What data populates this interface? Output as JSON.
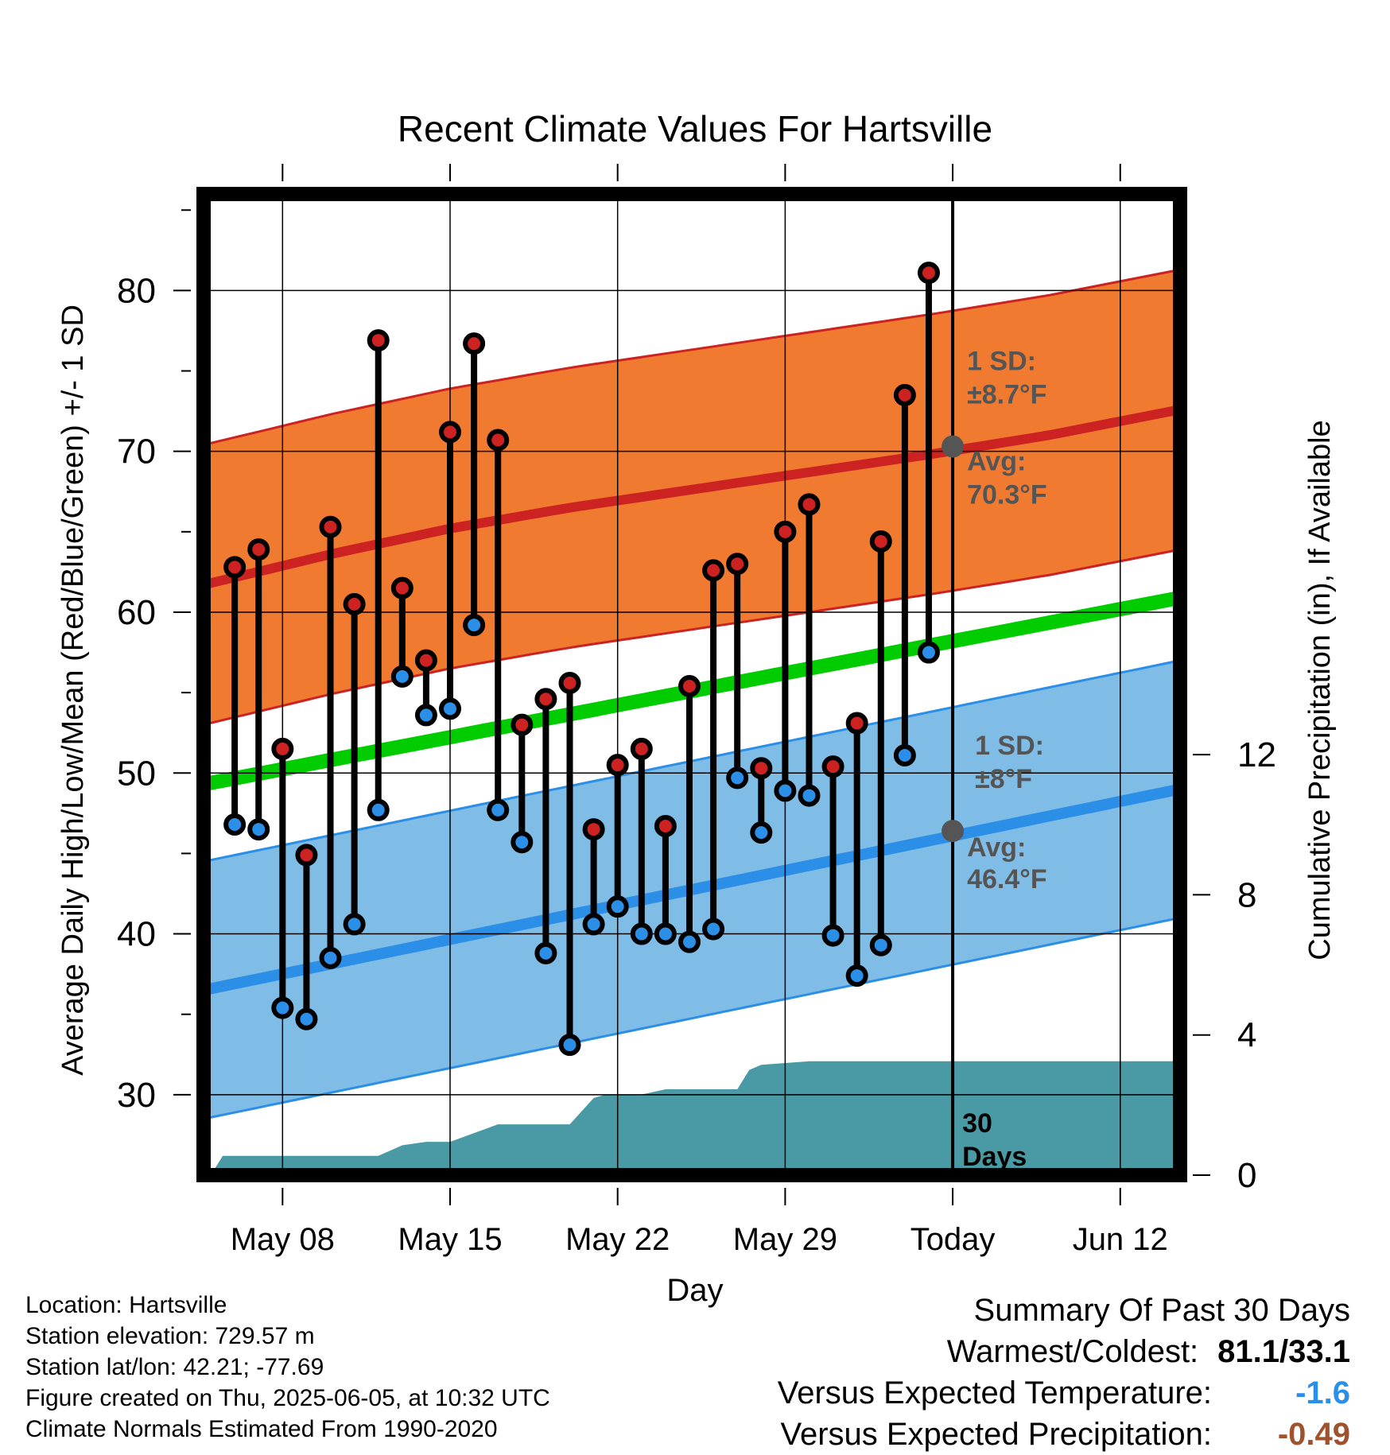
{
  "colors": {
    "high_dot": "#cc2222",
    "low_dot": "#2b8fe8",
    "high_band": "#f07a30",
    "high_line": "#cc2222",
    "low_band": "#80bde6",
    "low_line": "#2b8fe8",
    "mean_line": "#00cc00",
    "precip": "#4a9aa5",
    "avg_marker": "#555555",
    "annotation_text": "#555555",
    "temp_anomaly": "#2b8fe8",
    "precip_anomaly": "#a0522d"
  },
  "chart_data": {
    "type": "line",
    "title": "Recent Climate Values For Hartsville",
    "xlabel": "Day",
    "ylabel": "Average Daily High/Low/Mean (Red/Blue/Green) +/- 1 SD",
    "y2label": "Cumulative Precipitation (in), If Available",
    "x_ticks": [
      "May 08",
      "May 15",
      "May 22",
      "May 29",
      "Today",
      "Jun 12"
    ],
    "x_tick_days": [
      8,
      15,
      22,
      29,
      36,
      43
    ],
    "xlim": [
      4.7,
      45.5
    ],
    "ylim": [
      25,
      86
    ],
    "y_ticks": [
      30,
      40,
      50,
      60,
      70,
      80
    ],
    "y2lim": [
      0,
      28
    ],
    "y2_ticks": [
      0,
      4,
      8,
      12
    ],
    "today_day": 36,
    "days": [
      6,
      7,
      8,
      9,
      10,
      11,
      12,
      13,
      14,
      15,
      16,
      17,
      18,
      19,
      20,
      21,
      22,
      23,
      24,
      25,
      26,
      27,
      28,
      29,
      30,
      31,
      32,
      33,
      34,
      35
    ],
    "highs": [
      62.8,
      63.9,
      51.5,
      44.9,
      65.3,
      60.5,
      76.9,
      61.5,
      57.0,
      71.2,
      76.7,
      70.7,
      53.0,
      54.6,
      55.6,
      46.5,
      50.5,
      51.5,
      46.7,
      55.4,
      62.6,
      63.0,
      50.3,
      65.0,
      66.7,
      50.4,
      53.1,
      64.4,
      73.5,
      81.1
    ],
    "lows": [
      46.8,
      46.5,
      35.4,
      34.7,
      38.5,
      40.6,
      47.7,
      56.0,
      53.6,
      54.0,
      59.2,
      47.7,
      45.7,
      38.8,
      33.1,
      40.6,
      41.7,
      40.0,
      40.0,
      39.5,
      40.3,
      49.7,
      46.3,
      48.9,
      48.6,
      39.9,
      37.4,
      39.3,
      51.1,
      57.5
    ],
    "normal_high": {
      "x": [
        4.7,
        10,
        15,
        20,
        25,
        30,
        35,
        40,
        45.5
      ],
      "values": [
        61.7,
        63.6,
        65.2,
        66.5,
        67.6,
        68.7,
        69.8,
        71.0,
        72.6
      ]
    },
    "normal_high_sd": 8.7,
    "normal_mean": {
      "x": [
        4.7,
        45.5
      ],
      "values": [
        49.3,
        60.9
      ]
    },
    "normal_low": {
      "x": [
        4.7,
        45.5
      ],
      "values": [
        36.5,
        49.0
      ]
    },
    "normal_low_sd": 8,
    "cumulative_precip": {
      "x": [
        5,
        5.5,
        7,
        9,
        11,
        12,
        13,
        14,
        15,
        16,
        17,
        18,
        19,
        20,
        21,
        21.5,
        22,
        23,
        24,
        25,
        26,
        27,
        27.5,
        28,
        29,
        30,
        31,
        32,
        33,
        34,
        35,
        36,
        45.5
      ],
      "values": [
        0,
        0.55,
        0.55,
        0.55,
        0.55,
        0.55,
        0.85,
        0.95,
        0.95,
        1.2,
        1.45,
        1.45,
        1.45,
        1.45,
        2.2,
        2.3,
        2.3,
        2.3,
        2.45,
        2.45,
        2.45,
        2.45,
        3.0,
        3.15,
        3.2,
        3.25,
        3.25,
        3.25,
        3.25,
        3.25,
        3.25,
        3.25,
        3.25
      ]
    },
    "annotations": {
      "high_sd_line1": "1 SD:",
      "high_sd_line2": "±8.7°F",
      "high_avg_line1": "Avg:",
      "high_avg_line2": "70.3°F",
      "high_avg_value": 70.3,
      "low_sd_line1": "1 SD:",
      "low_sd_line2": "±8°F",
      "low_avg_line1": "Avg:",
      "low_avg_line2": "46.4°F",
      "low_avg_value": 46.4,
      "days_line1": "30",
      "days_line2": "Days"
    },
    "grid": true
  },
  "info": {
    "location": "Location: Hartsville",
    "elevation": "Station elevation: 729.57 m",
    "latlon": "Station lat/lon: 42.21; -77.69",
    "created": "Figure created on Thu, 2025-06-05, at 10:32 UTC",
    "normals": "Climate Normals Estimated From 1990-2020"
  },
  "summary": {
    "title": "Summary Of Past 30 Days",
    "warm_cold_label": "Warmest/Coldest:",
    "warm_cold_value": "81.1/33.1",
    "temp_label": "Versus Expected Temperature:",
    "temp_value": "-1.6",
    "precip_label": "Versus Expected Precipitation:",
    "precip_value": "-0.49"
  }
}
